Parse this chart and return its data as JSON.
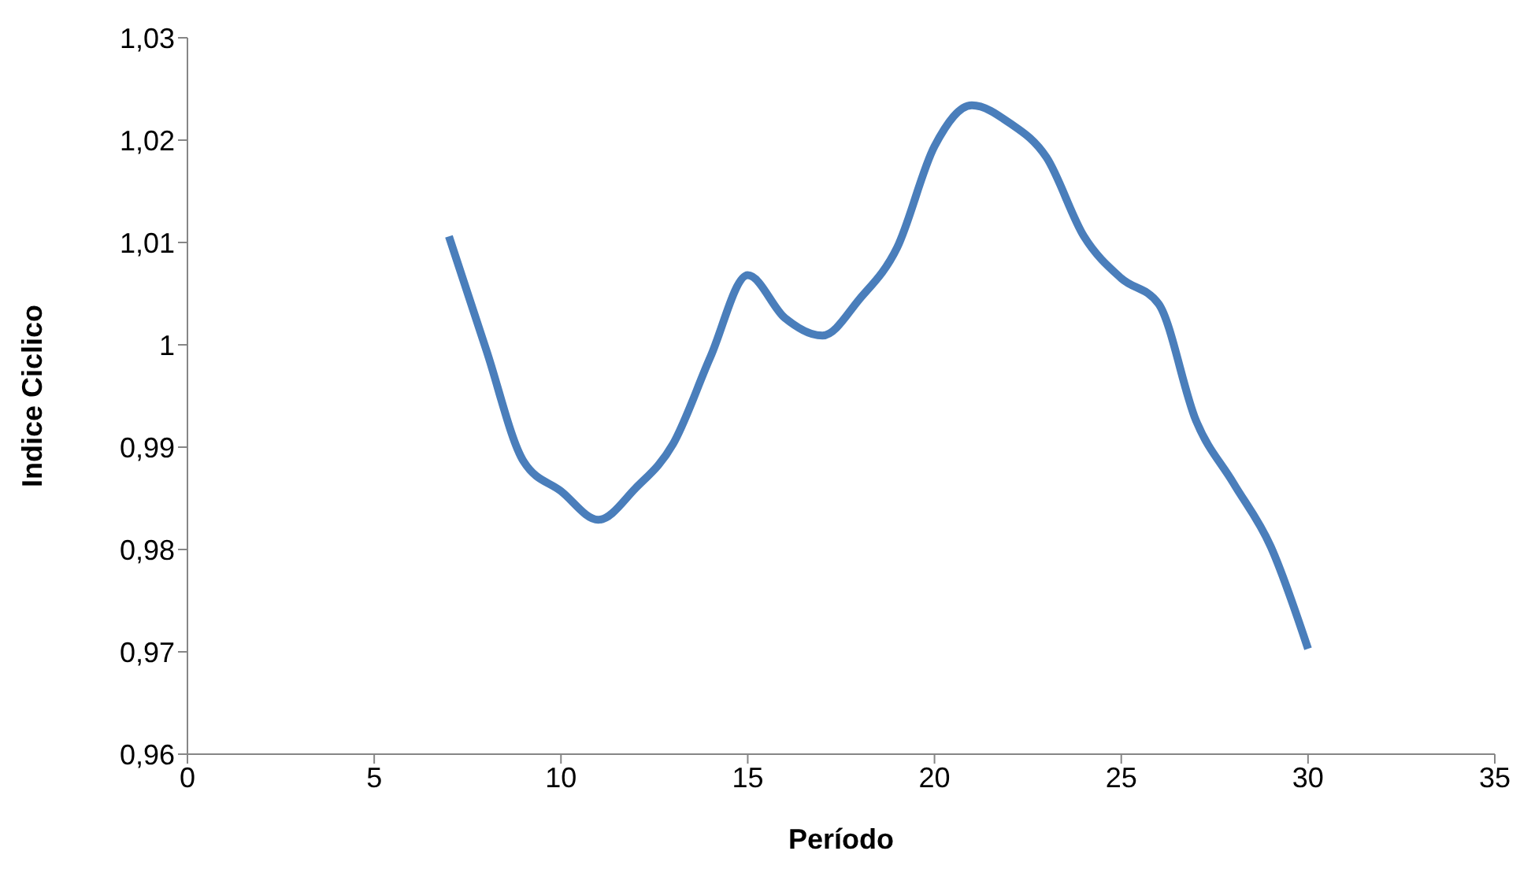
{
  "chart_data": {
    "type": "line",
    "xlabel": "Período",
    "ylabel": "Indice Ciclico",
    "x": [
      7,
      8,
      9,
      10,
      11,
      12,
      13,
      14,
      15,
      16,
      17,
      18,
      19,
      20,
      21,
      22,
      23,
      24,
      25,
      26,
      27,
      28,
      29,
      30
    ],
    "series": [
      {
        "color": "#4a7ebb",
        "values": [
          1.0106,
          0.9995,
          0.9886,
          0.9857,
          0.9829,
          0.986,
          0.9903,
          0.9988,
          1.0068,
          1.0026,
          1.0009,
          1.0045,
          1.0095,
          1.0194,
          1.0234,
          1.0217,
          1.0183,
          1.0106,
          1.0065,
          1.004,
          0.9926,
          0.9865,
          0.9803,
          0.9703
        ]
      }
    ],
    "xlim": [
      0,
      35
    ],
    "xticks": [
      0,
      5,
      10,
      15,
      20,
      25,
      30,
      35
    ],
    "ylim": [
      0.96,
      1.03
    ],
    "yticks": [
      {
        "value": 0.96,
        "label": "0,96"
      },
      {
        "value": 0.97,
        "label": "0,97"
      },
      {
        "value": 0.98,
        "label": "0,98"
      },
      {
        "value": 0.99,
        "label": "0,99"
      },
      {
        "value": 1,
        "label": "1"
      },
      {
        "value": 1.01,
        "label": "1,01"
      },
      {
        "value": 1.02,
        "label": "1,02"
      },
      {
        "value": 1.03,
        "label": "1,03"
      }
    ],
    "grid": false,
    "legend": false,
    "marker": "none",
    "line_style": "solid"
  }
}
